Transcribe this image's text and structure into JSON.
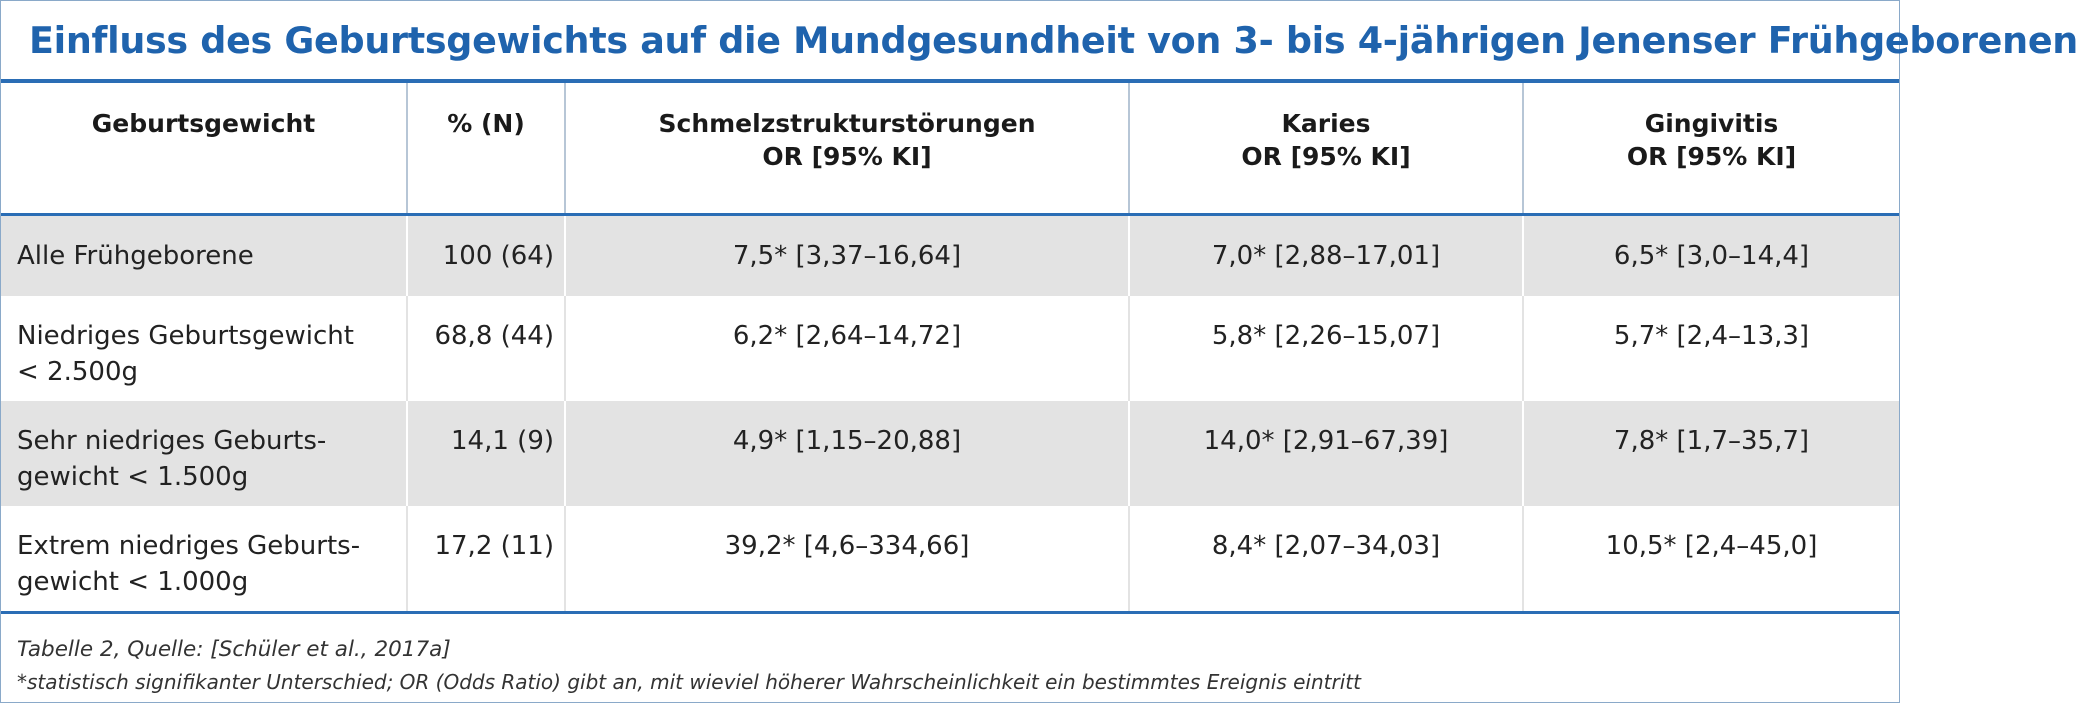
{
  "title": "Einfluss des Geburtsgewichts auf die Mundgesundheit von 3- bis 4-jährigen Jenenser Frühgeborenen",
  "columns": [
    {
      "line1": "Geburtsgewicht",
      "line2": ""
    },
    {
      "line1": "% (N)",
      "line2": ""
    },
    {
      "line1": "Schmelzstrukturstörungen",
      "line2": "OR [95% KI]"
    },
    {
      "line1": "Karies",
      "line2": "OR [95% KI]"
    },
    {
      "line1": "Gingivitis",
      "line2": "OR [95% KI]"
    }
  ],
  "rows": [
    {
      "group_line1": "Alle Frühgeborene",
      "group_line2": "",
      "percent_n": "100 (64)",
      "schmelz": "7,5* [3,37–16,64]",
      "karies": "7,0* [2,88–17,01]",
      "gingivitis": "6,5* [3,0–14,4]"
    },
    {
      "group_line1": "Niedriges Geburtsgewicht",
      "group_line2": "< 2.500g",
      "percent_n": "68,8 (44)",
      "schmelz": "6,2* [2,64–14,72]",
      "karies": "5,8* [2,26–15,07]",
      "gingivitis": "5,7* [2,4–13,3]"
    },
    {
      "group_line1": "Sehr niedriges Geburts-",
      "group_line2": "gewicht < 1.500g",
      "percent_n": "14,1 (9)",
      "schmelz": "4,9* [1,15–20,88]",
      "karies": "14,0* [2,91–67,39]",
      "gingivitis": "7,8* [1,7–35,7]"
    },
    {
      "group_line1": "Extrem niedriges Geburts-",
      "group_line2": "gewicht < 1.000g",
      "percent_n": "17,2 (11)",
      "schmelz": "39,2* [4,6–334,66]",
      "karies": "8,4* [2,07–34,03]",
      "gingivitis": "10,5* [2,4–45,0]"
    }
  ],
  "footer": {
    "source": "Tabelle 2, Quelle: [Schüler et al., 2017a]",
    "note": "*statistisch signifikanter Unterschied; OR (Odds Ratio) gibt an, mit wieviel höherer Wahrscheinlichkeit ein bestimmtes Ereignis eintritt"
  },
  "colors": {
    "title": "#1f63ad",
    "rule": "#2a6db5",
    "row_shade": "#e3e3e3",
    "frame": "#8aa9c9"
  }
}
